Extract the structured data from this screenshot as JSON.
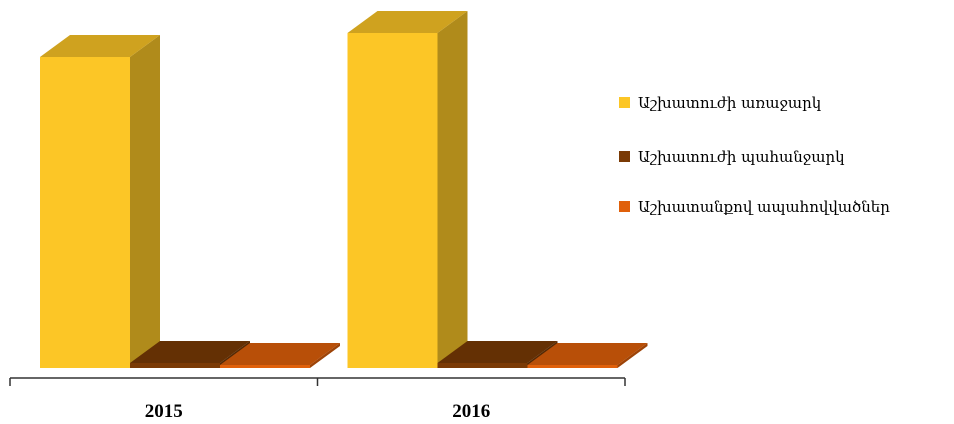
{
  "chart_data": {
    "type": "bar3d",
    "categories": [
      "2015",
      "2016"
    ],
    "series": [
      {
        "name": "Աշխատուժի առաջարկ",
        "color": "#fcc626",
        "values": [
          311,
          335
        ]
      },
      {
        "name": "Աշխատուժի պահանջարկ",
        "color": "#7a3a05",
        "values": [
          5,
          5
        ]
      },
      {
        "name": "Աշխատանքով ապահովվածներ",
        "color": "#e0600a",
        "values": [
          3,
          3
        ]
      }
    ],
    "legend": "right"
  }
}
